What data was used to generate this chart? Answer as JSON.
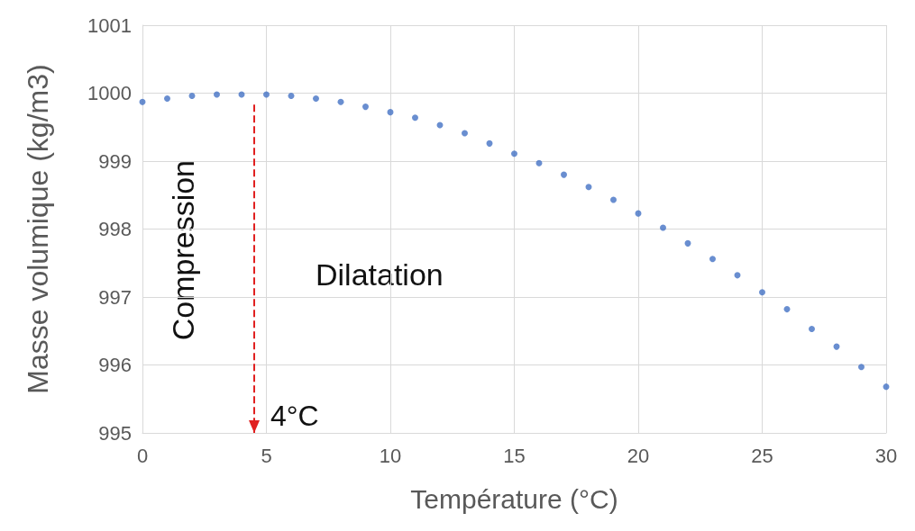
{
  "chart_data": {
    "type": "scatter",
    "xlabel": "Température (°C)",
    "ylabel": "Masse volumique (kg/m3)",
    "x": [
      0,
      1,
      2,
      3,
      4,
      5,
      6,
      7,
      8,
      9,
      10,
      11,
      12,
      13,
      14,
      15,
      16,
      17,
      18,
      19,
      20,
      21,
      22,
      23,
      24,
      25,
      26,
      27,
      28,
      29,
      30
    ],
    "series": [
      {
        "color": "#4472c4",
        "values": [
          999.87,
          999.92,
          999.96,
          999.98,
          999.98,
          999.98,
          999.96,
          999.92,
          999.87,
          999.8,
          999.72,
          999.64,
          999.53,
          999.41,
          999.26,
          999.11,
          998.97,
          998.8,
          998.62,
          998.43,
          998.23,
          998.02,
          997.79,
          997.56,
          997.32,
          997.07,
          996.82,
          996.53,
          996.27,
          995.97,
          995.68
        ]
      }
    ],
    "xlim": [
      0,
      30
    ],
    "xticks": [
      0,
      5,
      10,
      15,
      20,
      25,
      30
    ],
    "ylim": [
      995,
      1001
    ],
    "yticks": [
      995,
      996,
      997,
      998,
      999,
      1000,
      1001
    ],
    "grid": true,
    "marker": "circle",
    "ref_lines": [
      {
        "axis": "x",
        "value": 4.5,
        "label": "4°C",
        "color": "#e02020",
        "line_style": "dashed"
      }
    ],
    "annotations": [
      "Compression",
      "Dilatation"
    ]
  }
}
